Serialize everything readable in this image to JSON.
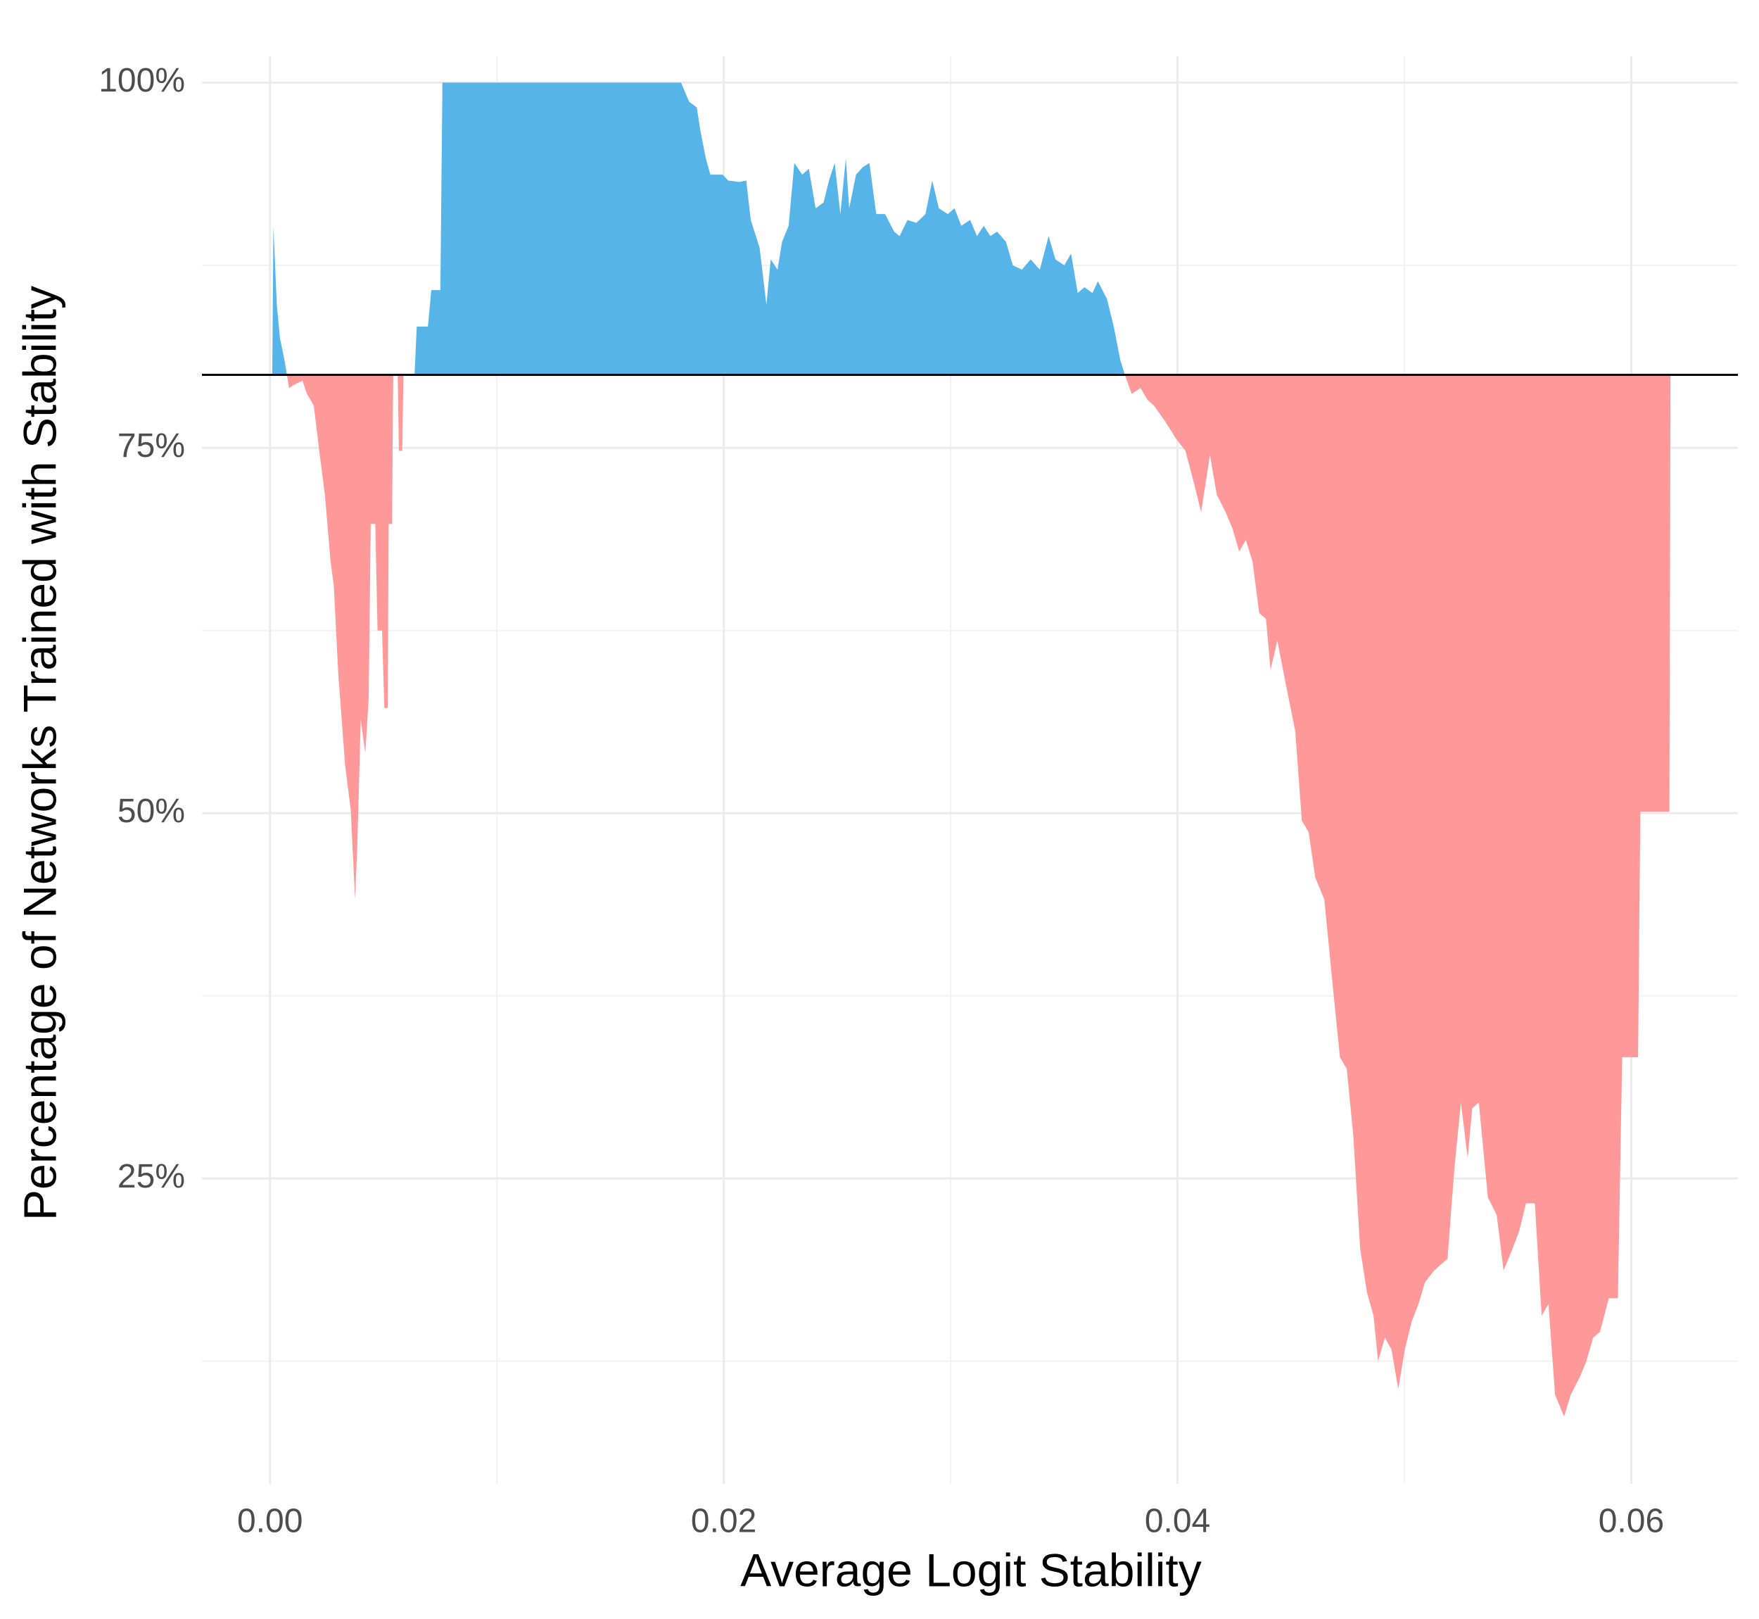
{
  "chart_data": {
    "type": "area",
    "xlabel": "Average Logit Stability",
    "ylabel": "Percentage of Networks Trained with Stability",
    "baseline": 80,
    "color_above": "#56b4e9",
    "color_below": "#ff9999",
    "xlim": [
      -0.003,
      0.0647
    ],
    "ylim": [
      4.1,
      101.8
    ],
    "xticks": [
      {
        "value": 0,
        "label": "0.00"
      },
      0.02,
      0.04,
      0.06
    ],
    "yticks": [
      {
        "value": 25,
        "label": "25%"
      },
      {
        "value": 50,
        "label": "50%"
      },
      {
        "value": 75,
        "label": "75%"
      },
      {
        "value": 100,
        "label": "100%"
      }
    ],
    "x_minor_ticks": [
      0.01,
      0.03,
      0.05
    ],
    "y_minor_ticks": [
      12.5,
      37.5,
      62.5,
      87.5
    ],
    "grid": true,
    "x": [
      0.0001,
      0.00015,
      0.0003,
      0.00044,
      0.00064,
      0.00084,
      0.00104,
      0.00143,
      0.00163,
      0.00193,
      0.00217,
      0.00242,
      0.00267,
      0.00281,
      0.00301,
      0.00331,
      0.00356,
      0.00375,
      0.00385,
      0.004,
      0.0042,
      0.00435,
      0.00444,
      0.00464,
      0.00474,
      0.00494,
      0.00504,
      0.00519,
      0.00523,
      0.00538,
      0.00543,
      0.00563,
      0.00568,
      0.00583,
      0.00588,
      0.00637,
      0.00647,
      0.00696,
      0.00711,
      0.00751,
      0.0076,
      0.01812,
      0.01847,
      0.01881,
      0.01896,
      0.01921,
      0.01941,
      0.01995,
      0.0202,
      0.02069,
      0.02099,
      0.02119,
      0.02158,
      0.02188,
      0.02207,
      0.02237,
      0.02257,
      0.02286,
      0.02311,
      0.02346,
      0.02375,
      0.02405,
      0.0244,
      0.02464,
      0.02489,
      0.02514,
      0.02538,
      0.02553,
      0.02583,
      0.02612,
      0.02642,
      0.02672,
      0.02711,
      0.02751,
      0.02775,
      0.0281,
      0.02849,
      0.02889,
      0.02919,
      0.02948,
      0.02988,
      0.03017,
      0.03047,
      0.03086,
      0.03116,
      0.03146,
      0.03175,
      0.03205,
      0.03244,
      0.03274,
      0.03314,
      0.03353,
      0.03393,
      0.03432,
      0.03462,
      0.03501,
      0.03531,
      0.0356,
      0.0359,
      0.03625,
      0.03649,
      0.03689,
      0.03719,
      0.03748,
      0.03768,
      0.03798,
      0.03837,
      0.03867,
      0.03896,
      0.03946,
      0.03995,
      0.04035,
      0.04074,
      0.04104,
      0.04143,
      0.04173,
      0.04212,
      0.04242,
      0.04272,
      0.04301,
      0.04331,
      0.0436,
      0.0439,
      0.0441,
      0.0444,
      0.04479,
      0.04519,
      0.04548,
      0.04578,
      0.04607,
      0.04647,
      0.04686,
      0.04716,
      0.04746,
      0.04775,
      0.04805,
      0.04835,
      0.04864,
      0.04884,
      0.04914,
      0.04943,
      0.04973,
      0.05002,
      0.05032,
      0.05062,
      0.05091,
      0.05131,
      0.0516,
      0.0519,
      0.0522,
      0.05249,
      0.05279,
      0.05299,
      0.05328,
      0.05368,
      0.05407,
      0.05437,
      0.05477,
      0.05506,
      0.05536,
      0.05575,
      0.05605,
      0.05635,
      0.05664,
      0.05704,
      0.05733,
      0.05773,
      0.05802,
      0.05832,
      0.05862,
      0.05901,
      0.05941,
      0.0596,
      0.0603,
      0.0604,
      0.06168,
      0.06173
    ],
    "values": [
      80,
      90.2,
      84.8,
      82.5,
      81,
      79.1,
      79.3,
      79.6,
      78.7,
      77.9,
      74.8,
      71.8,
      67.2,
      65.6,
      59.5,
      53.3,
      50.2,
      44.1,
      47.9,
      56.4,
      54.1,
      57.9,
      69.8,
      69.8,
      62.5,
      62.5,
      57.2,
      57.2,
      69.8,
      69.8,
      80,
      80,
      74.8,
      74.8,
      80,
      80,
      83.3,
      83.3,
      85.8,
      85.8,
      100,
      100,
      98.7,
      98.3,
      96.8,
      94.8,
      93.7,
      93.7,
      93.3,
      93.2,
      93.3,
      90.6,
      88.7,
      84.8,
      87.9,
      87.2,
      89.1,
      90.2,
      94.5,
      93.7,
      94.1,
      91.4,
      91.8,
      93.3,
      94.5,
      91,
      94.8,
      91.4,
      93.7,
      94.2,
      94.5,
      91,
      91,
      89.8,
      89.5,
      90.6,
      90.4,
      91,
      93.3,
      91.4,
      91,
      91.4,
      90.2,
      90.6,
      89.5,
      90.2,
      89.5,
      89.8,
      89.1,
      87.5,
      87.2,
      87.9,
      87.2,
      89.5,
      87.9,
      87.5,
      88.3,
      85.6,
      86,
      85.6,
      86.4,
      85.2,
      83.3,
      81,
      80,
      78.7,
      79.1,
      78.3,
      77.9,
      76.8,
      75.6,
      74.8,
      72.5,
      70.6,
      74.5,
      71.8,
      70.6,
      69.5,
      67.9,
      68.7,
      67.2,
      63.7,
      63.3,
      59.8,
      61.8,
      58.7,
      55.6,
      49.5,
      48.7,
      45.6,
      44.1,
      37.9,
      33.3,
      32.5,
      27.9,
      20.2,
      17.2,
      15.6,
      12.5,
      14.1,
      13.3,
      10.6,
      13.3,
      15.2,
      16.4,
      17.9,
      18.7,
      19.1,
      19.5,
      25.6,
      30.2,
      26.4,
      29.8,
      30.2,
      23.7,
      22.5,
      18.7,
      20.2,
      21.4,
      23.3,
      23.3,
      15.6,
      16.4,
      10.2,
      8.7,
      10.2,
      11.4,
      12.5,
      14.1,
      14.5,
      16.8,
      16.8,
      33.3,
      33.3,
      50.1,
      50.1,
      80
    ]
  }
}
